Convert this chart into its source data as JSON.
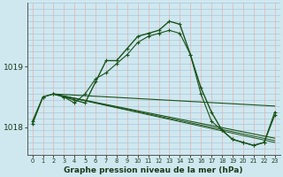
{
  "title": "Graphe pression niveau de la mer (hPa)",
  "background_color": "#cfe8f0",
  "grid_color_v": "#e8b8b8",
  "grid_color_h": "#a8c8d8",
  "line_color": "#1a5218",
  "ytick_labels": [
    "1018",
    "1019"
  ],
  "ytick_vals": [
    1018.0,
    1019.0
  ],
  "ylim": [
    1017.55,
    1020.05
  ],
  "xlim": [
    -0.5,
    23.5
  ],
  "xticks": [
    0,
    1,
    2,
    3,
    4,
    5,
    6,
    7,
    8,
    9,
    10,
    11,
    12,
    13,
    14,
    15,
    16,
    17,
    18,
    19,
    20,
    21,
    22,
    23
  ],
  "series": [
    {
      "x": [
        0,
        1,
        2,
        3,
        4,
        5,
        6,
        7,
        8,
        9,
        10,
        11,
        12,
        13,
        14,
        15,
        16,
        17,
        18,
        19,
        20,
        21,
        22,
        23
      ],
      "y": [
        1018.05,
        1018.5,
        1018.55,
        1018.5,
        1018.45,
        1018.4,
        1018.75,
        1019.1,
        1019.1,
        1019.3,
        1019.5,
        1019.55,
        1019.6,
        1019.75,
        1019.7,
        1019.2,
        1018.65,
        1018.25,
        1017.95,
        1017.8,
        1017.75,
        1017.7,
        1017.75,
        1018.2
      ],
      "lw": 1.0,
      "marker": true,
      "ms": 3.5
    },
    {
      "x": [
        0,
        1,
        2,
        3,
        4,
        5,
        6,
        7,
        8,
        9,
        10,
        11,
        12,
        13,
        14,
        15,
        16,
        17,
        18,
        19,
        20,
        21,
        22,
        23
      ],
      "y": [
        1018.1,
        1018.5,
        1018.55,
        1018.5,
        1018.4,
        1018.55,
        1018.8,
        1018.9,
        1019.05,
        1019.2,
        1019.4,
        1019.5,
        1019.55,
        1019.6,
        1019.55,
        1019.2,
        1018.55,
        1018.1,
        1017.95,
        1017.8,
        1017.75,
        1017.7,
        1017.75,
        1018.25
      ],
      "lw": 0.8,
      "marker": true,
      "ms": 3.0
    },
    {
      "x": [
        2,
        23
      ],
      "y": [
        1018.55,
        1018.35
      ],
      "lw": 0.8,
      "marker": false
    },
    {
      "x": [
        2,
        23
      ],
      "y": [
        1018.55,
        1017.82
      ],
      "lw": 0.8,
      "marker": false
    },
    {
      "x": [
        2,
        23
      ],
      "y": [
        1018.55,
        1017.78
      ],
      "lw": 0.7,
      "marker": false
    },
    {
      "x": [
        2,
        23
      ],
      "y": [
        1018.55,
        1017.75
      ],
      "lw": 0.7,
      "marker": false
    }
  ]
}
